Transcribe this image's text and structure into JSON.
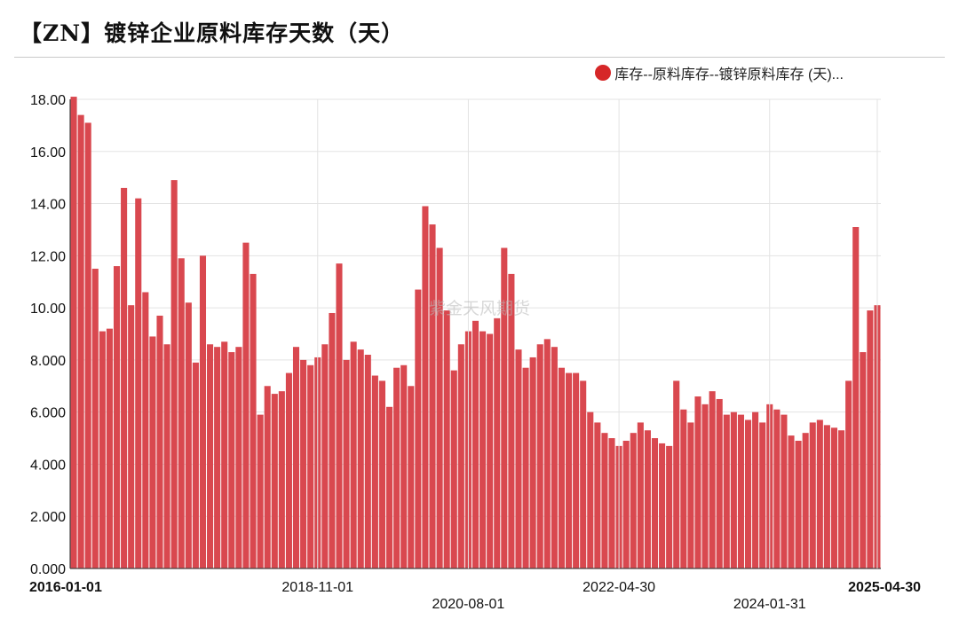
{
  "title": "【ZN】镀锌企业原料库存天数（天）",
  "legend": {
    "label": "库存--原料库存--镀锌原料库存 (天)..."
  },
  "watermark": "紫金天风期货",
  "colors": {
    "bar": "#d9484f",
    "legend_dot": "#d62728",
    "grid": "#e3e3e3"
  },
  "chart_data": {
    "type": "bar",
    "title": "【ZN】镀锌企业原料库存天数（天）",
    "xlabel": "",
    "ylabel": "",
    "ylim": [
      0,
      18
    ],
    "y_ticks": [
      "0.000",
      "2.000",
      "4.000",
      "6.000",
      "8.000",
      "10.00",
      "12.00",
      "14.00",
      "16.00",
      "18.00"
    ],
    "x_ticks": [
      {
        "index": 0,
        "label": "2016-01-01",
        "bold": true,
        "row": 0
      },
      {
        "index": 34,
        "label": "2018-11-01",
        "bold": false,
        "row": 0
      },
      {
        "index": 55,
        "label": "2020-08-01",
        "bold": false,
        "row": 1
      },
      {
        "index": 76,
        "label": "2022-04-30",
        "bold": false,
        "row": 0
      },
      {
        "index": 97,
        "label": "2024-01-31",
        "bold": false,
        "row": 1
      },
      {
        "index": 112,
        "label": "2025-04-30",
        "bold": true,
        "row": 0
      }
    ],
    "series": [
      {
        "name": "库存--原料库存--镀锌原料库存 (天)...",
        "values": [
          18.1,
          17.4,
          17.1,
          11.5,
          9.1,
          9.2,
          11.6,
          14.6,
          10.1,
          14.2,
          10.6,
          8.9,
          9.7,
          8.6,
          14.9,
          11.9,
          10.2,
          7.9,
          12.0,
          8.6,
          8.5,
          8.7,
          8.3,
          8.5,
          12.5,
          11.3,
          5.9,
          7.0,
          6.7,
          6.8,
          7.5,
          8.5,
          8.0,
          7.8,
          8.1,
          8.6,
          9.8,
          11.7,
          8.0,
          8.7,
          8.4,
          8.2,
          7.4,
          7.2,
          6.2,
          7.7,
          7.8,
          7.0,
          10.7,
          13.9,
          13.2,
          12.3,
          9.9,
          7.6,
          8.6,
          9.1,
          9.5,
          9.1,
          9.0,
          9.6,
          12.3,
          11.3,
          8.4,
          7.7,
          8.1,
          8.6,
          8.8,
          8.5,
          7.7,
          7.5,
          7.5,
          7.2,
          6.0,
          5.6,
          5.2,
          5.0,
          4.7,
          4.9,
          5.2,
          5.6,
          5.3,
          5.0,
          4.8,
          4.7,
          7.2,
          6.1,
          5.6,
          6.6,
          6.3,
          6.8,
          6.5,
          5.9,
          6.0,
          5.9,
          5.7,
          6.0,
          5.6,
          6.3,
          6.1,
          5.9,
          5.1,
          4.9,
          5.2,
          5.6,
          5.7,
          5.5,
          5.4,
          5.3,
          7.2,
          13.1,
          8.3,
          9.9,
          10.1
        ]
      }
    ]
  }
}
